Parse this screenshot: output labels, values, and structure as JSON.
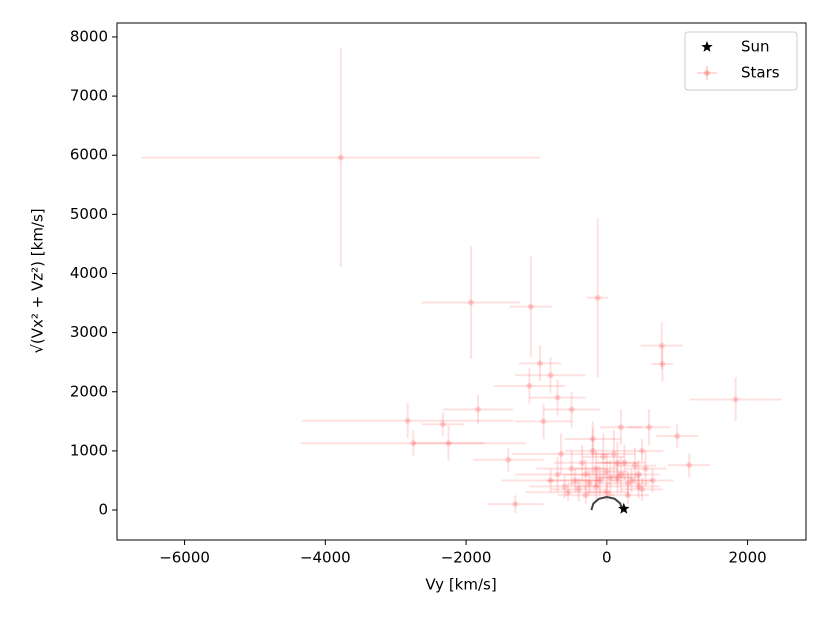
{
  "chart_data": {
    "type": "scatter",
    "xlabel": "Vy [km/s]",
    "ylabel": "√(Vx² + Vz²) [km/s]",
    "xlim": [
      -6960,
      2830
    ],
    "ylim": [
      -507,
      8236
    ],
    "xticks": [
      {
        "value": -6000,
        "label": "−6000"
      },
      {
        "value": -4000,
        "label": "−4000"
      },
      {
        "value": -2000,
        "label": "−2000"
      },
      0,
      2000
    ],
    "yticks": [
      0,
      1000,
      2000,
      3000,
      4000,
      5000,
      6000,
      7000,
      8000
    ],
    "legend": "upper right",
    "series": [
      {
        "name": "Sun",
        "color": "#000000",
        "marker": "star",
        "x": [
          241
        ],
        "y": [
          20
        ]
      },
      {
        "name": "Stars",
        "color": "#ff0000",
        "marker": "errorbar",
        "x": [
          -3780,
          -1930,
          -1080,
          -130,
          780,
          790,
          1830,
          -2830,
          -2750,
          -2250,
          -2330,
          -1830,
          -1100,
          -800,
          -950,
          -700,
          1000,
          1170,
          -1400,
          -900,
          -500,
          -200,
          200,
          500,
          600,
          -1300,
          -600,
          -450,
          -300,
          -150,
          0,
          150,
          300,
          450,
          -550,
          -400,
          -250,
          -100,
          50,
          200,
          350,
          500,
          -700,
          -350,
          -50,
          250,
          550,
          -800,
          -500,
          -200,
          100,
          400,
          650,
          -300,
          0,
          300,
          -650,
          -150,
          150,
          450
        ],
        "y": [
          5960,
          3510,
          3440,
          3590,
          2780,
          2470,
          1870,
          1510,
          1130,
          1130,
          1450,
          1700,
          2100,
          2280,
          2480,
          1900,
          1250,
          760,
          850,
          1500,
          1700,
          1200,
          1400,
          1000,
          1400,
          100,
          400,
          500,
          600,
          700,
          650,
          550,
          450,
          400,
          300,
          350,
          450,
          500,
          550,
          600,
          500,
          350,
          600,
          800,
          900,
          800,
          700,
          500,
          700,
          1000,
          950,
          750,
          500,
          250,
          300,
          250,
          950,
          400,
          800,
          600
        ],
        "xerr": [
          2830,
          700,
          300,
          150,
          300,
          150,
          650,
          1500,
          1600,
          500,
          300,
          500,
          500,
          500,
          300,
          400,
          300,
          300,
          500,
          400,
          400,
          400,
          300,
          300,
          300,
          400,
          500,
          400,
          300,
          300,
          300,
          300,
          300,
          300,
          600,
          400,
          300,
          300,
          300,
          300,
          300,
          300,
          600,
          400,
          300,
          300,
          300,
          700,
          500,
          400,
          300,
          300,
          300,
          400,
          300,
          300,
          700,
          300,
          300,
          300
        ],
        "yerr": [
          1850,
          950,
          850,
          1350,
          400,
          300,
          370,
          300,
          220,
          300,
          200,
          250,
          300,
          300,
          300,
          300,
          200,
          200,
          200,
          300,
          300,
          300,
          300,
          200,
          300,
          150,
          200,
          200,
          250,
          300,
          300,
          250,
          200,
          200,
          150,
          200,
          200,
          250,
          300,
          300,
          200,
          200,
          300,
          300,
          400,
          300,
          300,
          200,
          300,
          400,
          400,
          300,
          200,
          150,
          150,
          150,
          350,
          250,
          350,
          250
        ]
      }
    ],
    "lines": [
      {
        "color": "#444444",
        "x": [
          220,
          191,
          110,
          0,
          -110,
          -191,
          -220
        ],
        "y": [
          0,
          110,
          191,
          220,
          191,
          110,
          0
        ]
      }
    ]
  }
}
